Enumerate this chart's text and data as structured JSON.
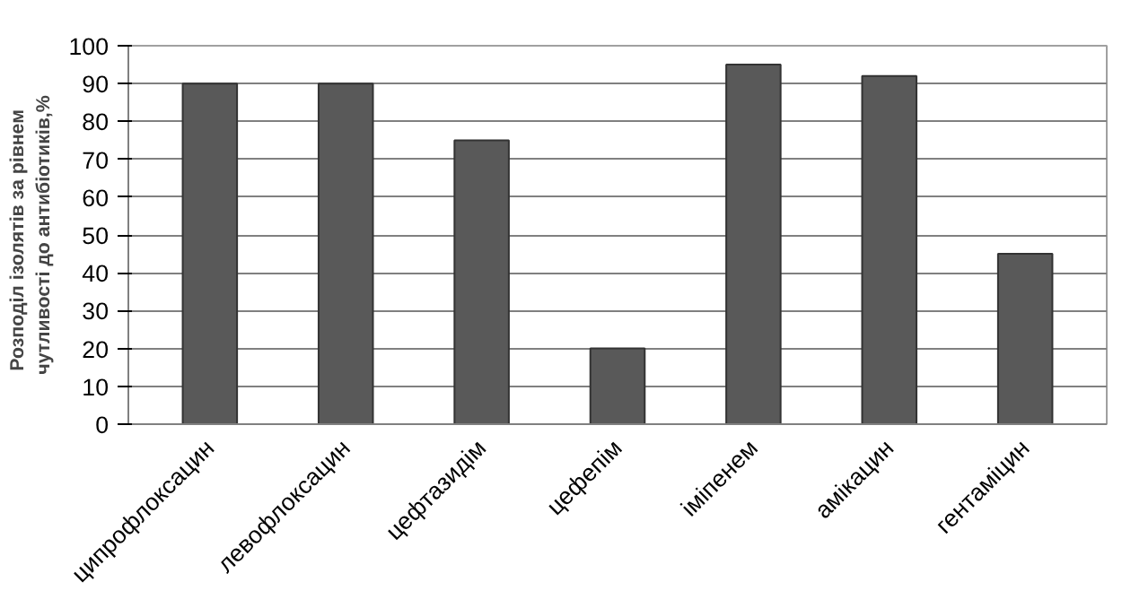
{
  "chart_data": {
    "type": "bar",
    "ylabel": "Розподіл ізолятів  за  рівнем  чутливості до антибіотиків,%",
    "categories": [
      "ципрофлоксацин",
      "левофлоксацин",
      "цефтазидім",
      "цефепім",
      "іміпенем",
      "амікацин",
      "гентаміцин"
    ],
    "values": [
      90,
      90,
      75,
      20,
      95,
      92,
      45
    ],
    "color": "#595959",
    "ylim": [
      0,
      100
    ],
    "yticks": [
      0,
      10,
      20,
      30,
      40,
      50,
      60,
      70,
      80,
      90,
      100
    ],
    "grid": "y"
  }
}
